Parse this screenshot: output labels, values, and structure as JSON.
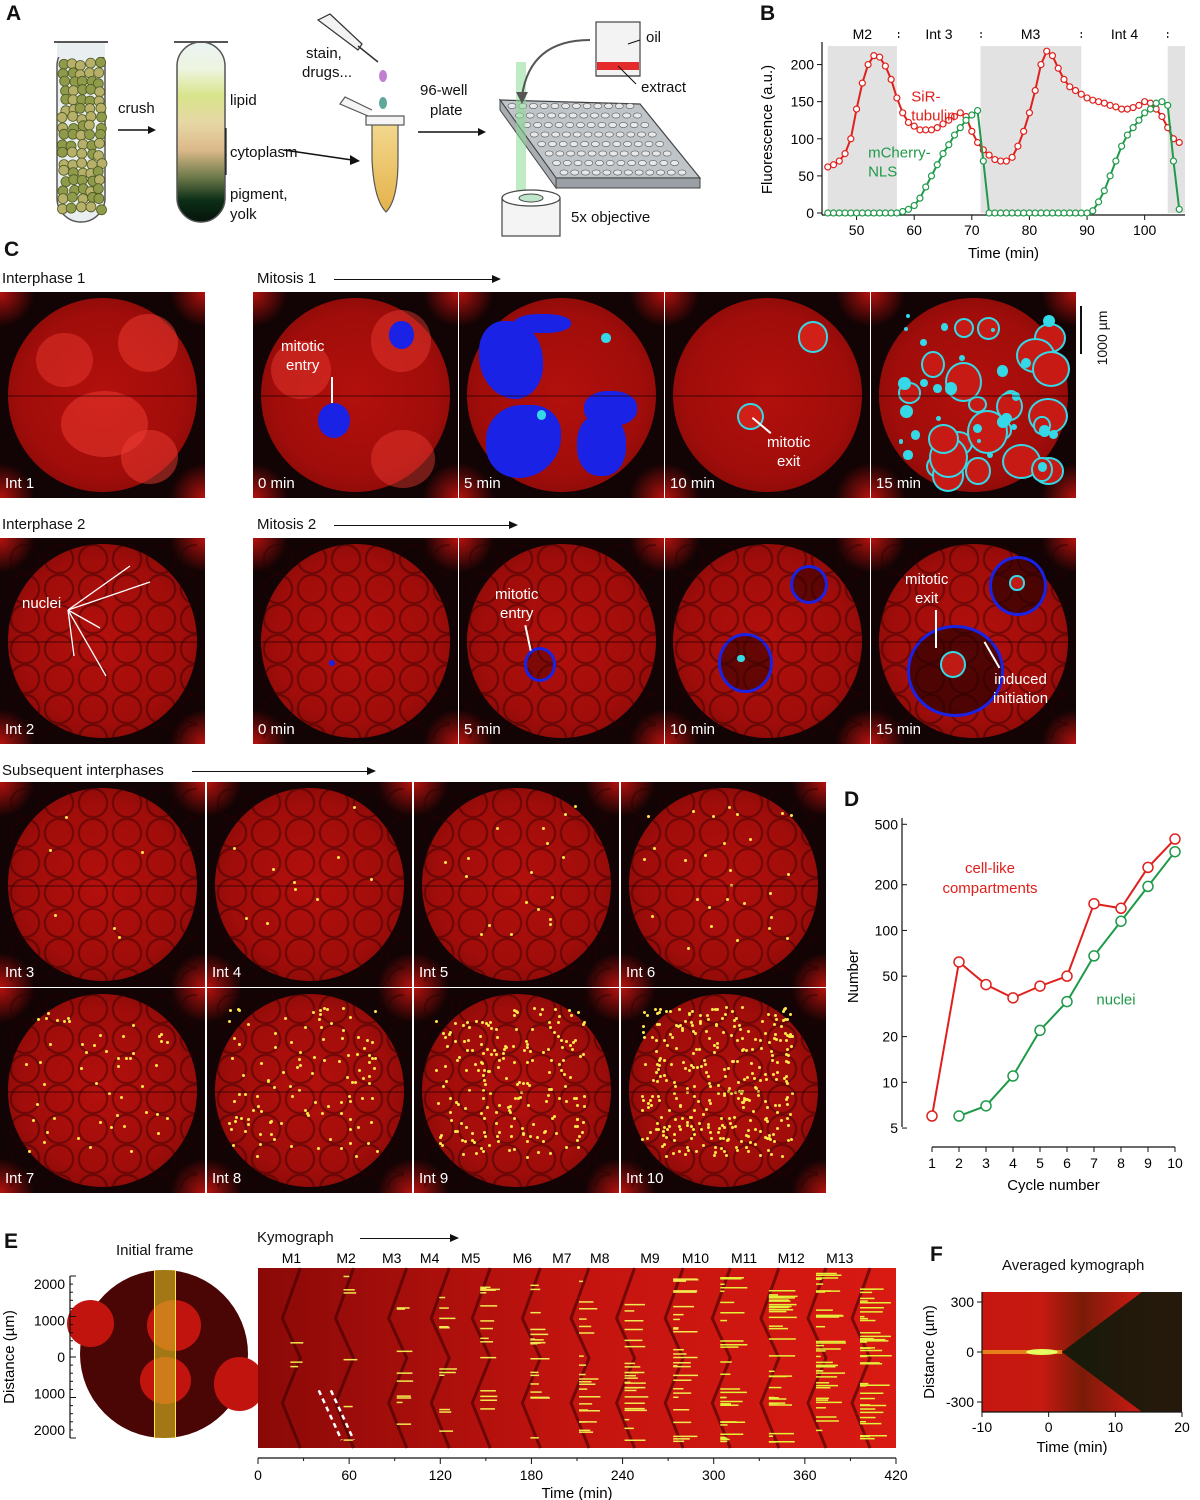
{
  "panels": {
    "A": "A",
    "B": "B",
    "C": "C",
    "D": "D",
    "E": "E",
    "F": "F"
  },
  "panelA": {
    "crush": "crush",
    "lipid": "lipid",
    "cytoplasm": "cytoplasm",
    "pigment": "pigment,",
    "yolk": "yolk",
    "stain": "stain,",
    "drugs": "drugs...",
    "plate1": "96-well",
    "plate2": "plate",
    "oil": "oil",
    "extract": "extract",
    "objective": "5x objective"
  },
  "panelB": {
    "phases": [
      "M2",
      "Int 3",
      "M3",
      "Int 4"
    ],
    "sir1": "SiR-",
    "sir2": "tubulin",
    "mch1": "mCherry-",
    "mch2": "NLS",
    "ylabel": "Fluorescence (a.u.)",
    "xlabel": "Time (min)",
    "yticks": [
      "0",
      "50",
      "100",
      "150",
      "200"
    ],
    "xticks": [
      "50",
      "60",
      "70",
      "80",
      "90",
      "100"
    ]
  },
  "chart_data": [
    {
      "type": "line",
      "ylabel": "Fluorescence (a.u.)",
      "xlabel": "Time (min)",
      "xlim": [
        44,
        107
      ],
      "ylim": [
        0,
        225
      ],
      "shaded_intervals": [
        [
          45,
          57
        ],
        [
          71.5,
          89
        ],
        [
          104,
          107
        ]
      ],
      "series": [
        {
          "name": "SiR-tubulin",
          "color": "#e0201c",
          "x": [
            45,
            46,
            47,
            48,
            49,
            50,
            51,
            52,
            53,
            54,
            55,
            56,
            57,
            58,
            59,
            60,
            61,
            62,
            63,
            64,
            65,
            66,
            67,
            68,
            69,
            70,
            71,
            72,
            73,
            74,
            75,
            76,
            77,
            78,
            79,
            80,
            81,
            82,
            83,
            84,
            85,
            86,
            87,
            88,
            89,
            90,
            91,
            92,
            93,
            94,
            95,
            96,
            97,
            98,
            99,
            100,
            101,
            102,
            103,
            104,
            105,
            106
          ],
          "y": [
            62,
            65,
            70,
            80,
            100,
            140,
            175,
            200,
            212,
            210,
            198,
            180,
            155,
            135,
            122,
            117,
            112,
            112,
            112,
            115,
            120,
            125,
            130,
            135,
            130,
            110,
            95,
            85,
            78,
            72,
            70,
            70,
            75,
            90,
            110,
            135,
            165,
            200,
            218,
            212,
            195,
            180,
            170,
            165,
            160,
            155,
            152,
            150,
            148,
            145,
            143,
            140,
            140,
            142,
            145,
            150,
            148,
            140,
            130,
            115,
            100,
            95
          ]
        },
        {
          "name": "mCherry-NLS",
          "color": "#1f9a4a",
          "x": [
            45,
            46,
            47,
            48,
            49,
            50,
            51,
            52,
            53,
            54,
            55,
            56,
            57,
            58,
            59,
            60,
            61,
            62,
            63,
            64,
            65,
            66,
            67,
            68,
            69,
            70,
            71,
            72,
            73,
            74,
            75,
            76,
            77,
            78,
            79,
            80,
            81,
            82,
            83,
            84,
            85,
            86,
            87,
            88,
            89,
            90,
            91,
            92,
            93,
            94,
            95,
            96,
            97,
            98,
            99,
            100,
            101,
            102,
            103,
            104,
            105,
            106
          ],
          "y": [
            0,
            0,
            0,
            0,
            0,
            0,
            0,
            0,
            0,
            0,
            0,
            0,
            0,
            2,
            5,
            10,
            20,
            35,
            50,
            65,
            80,
            92,
            105,
            115,
            125,
            132,
            138,
            70,
            0,
            0,
            0,
            0,
            0,
            0,
            0,
            0,
            0,
            0,
            0,
            0,
            0,
            0,
            0,
            0,
            0,
            0,
            3,
            15,
            30,
            50,
            70,
            90,
            105,
            115,
            125,
            135,
            140,
            148,
            150,
            145,
            70,
            5
          ]
        }
      ]
    },
    {
      "type": "line",
      "xlabel": "Cycle number",
      "ylabel": "Number",
      "log_y": true,
      "ylim": [
        4.5,
        550
      ],
      "xticks": [
        1,
        2,
        3,
        4,
        5,
        6,
        7,
        8,
        9,
        10
      ],
      "yticks": [
        5,
        10,
        20,
        50,
        100,
        200,
        500
      ],
      "series": [
        {
          "name": "cell-like compartments",
          "color": "#e0201c",
          "x": [
            1,
            2,
            3,
            4,
            5,
            6,
            7,
            8,
            9,
            10
          ],
          "y": [
            6,
            62,
            44,
            36,
            43,
            50,
            150,
            140,
            260,
            400
          ]
        },
        {
          "name": "nuclei",
          "color": "#1f9a4a",
          "x": [
            2,
            3,
            4,
            5,
            6,
            7,
            8,
            9,
            10
          ],
          "y": [
            6,
            7,
            11,
            22,
            34,
            68,
            115,
            195,
            330
          ]
        }
      ]
    }
  ],
  "panelC": {
    "int1_title": "Interphase 1",
    "mit1_title": "Mitosis 1",
    "int2_title": "Interphase 2",
    "mit2_title": "Mitosis 2",
    "subs_title": "Subsequent interphases",
    "scale": "1000 µm",
    "row1": [
      "Int 1",
      "0 min",
      "5 min",
      "10 min",
      "15 min"
    ],
    "row2": [
      "Int 2",
      "0 min",
      "5 min",
      "10 min",
      "15 min"
    ],
    "row3": [
      "Int 3",
      "Int 4",
      "Int 5",
      "Int 6"
    ],
    "row4": [
      "Int 7",
      "Int 8",
      "Int 9",
      "Int 10"
    ],
    "mitotic_entry1": "mitotic",
    "mitotic_entry2": "entry",
    "mitotic_exit1": "mitotic",
    "mitotic_exit2": "exit",
    "nuclei": "nuclei",
    "induced1": "induced",
    "induced2": "initiation"
  },
  "panelD": {
    "ylabel": "Number",
    "xlabel": "Cycle number",
    "red1": "cell-like",
    "red2": "compartments",
    "green": "nuclei",
    "yticks": [
      "5",
      "10",
      "20",
      "50",
      "100",
      "200",
      "500"
    ],
    "xticks": [
      "1",
      "2",
      "3",
      "4",
      "5",
      "6",
      "7",
      "8",
      "9",
      "10"
    ]
  },
  "panelE": {
    "initial": "Initial frame",
    "kymo": "Kymograph",
    "ylabel": "Distance (µm)",
    "yticks": [
      "2000",
      "1000",
      "0",
      "1000",
      "2000"
    ],
    "mitoses": [
      "M1",
      "M2",
      "M3",
      "M4",
      "M5",
      "M6",
      "M7",
      "M8",
      "M9",
      "M10",
      "M11",
      "M12",
      "M13"
    ],
    "xticks": [
      "0",
      "60",
      "120",
      "180",
      "240",
      "300",
      "360",
      "420"
    ],
    "xlabel": "Time (min)"
  },
  "panelF": {
    "title": "Averaged kymograph",
    "ylabel": "Distance (µm)",
    "yticks": [
      "300",
      "0",
      "-300"
    ],
    "xticks": [
      "-10",
      "0",
      "10",
      "20"
    ],
    "xlabel": "Time (min)"
  }
}
